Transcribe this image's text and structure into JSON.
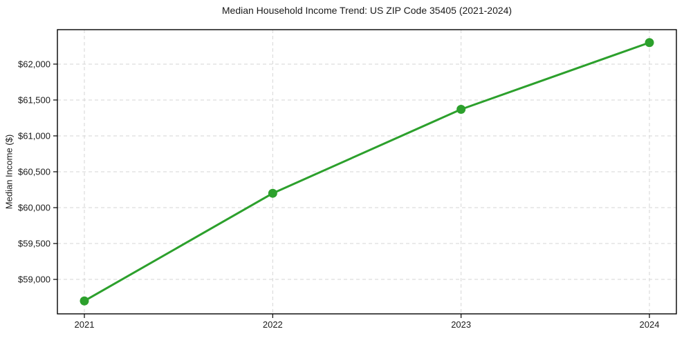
{
  "figure": {
    "title": "Median Household Income Trend: US ZIP Code 35405 (2021-2024)",
    "y_axis_label": "Median Income ($)"
  },
  "colors": {
    "line": "#2ca02c",
    "marker": "#2ca02c",
    "grid": "#d6d6d6",
    "axis": "#000000",
    "tick_text": "#1a1a1a",
    "background": "#ffffff"
  },
  "chart_data": {
    "type": "line",
    "title": "Median Household Income Trend: US ZIP Code 35405 (2021-2024)",
    "xlabel": "",
    "ylabel": "Median Income ($)",
    "categories": [
      "2021",
      "2022",
      "2023",
      "2024"
    ],
    "series": [
      {
        "name": "Median Income",
        "values": [
          58700,
          60200,
          61370,
          62300
        ]
      }
    ],
    "ylim": [
      58520,
      62480
    ],
    "y_ticks": [
      {
        "value": 59000,
        "label": "$59,000"
      },
      {
        "value": 59500,
        "label": "$59,500"
      },
      {
        "value": 60000,
        "label": "$60,000"
      },
      {
        "value": 60500,
        "label": "$60,500"
      },
      {
        "value": 61000,
        "label": "$61,000"
      },
      {
        "value": 61500,
        "label": "$61,500"
      },
      {
        "value": 62000,
        "label": "$62,000"
      }
    ],
    "x_ticks": [
      {
        "label": "2021"
      },
      {
        "label": "2022"
      },
      {
        "label": "2023"
      },
      {
        "label": "2024"
      }
    ],
    "grid": true,
    "grid_style": "dashed",
    "legend": "none",
    "marker": "circle",
    "line_width": 3,
    "marker_radius": 6.5
  }
}
